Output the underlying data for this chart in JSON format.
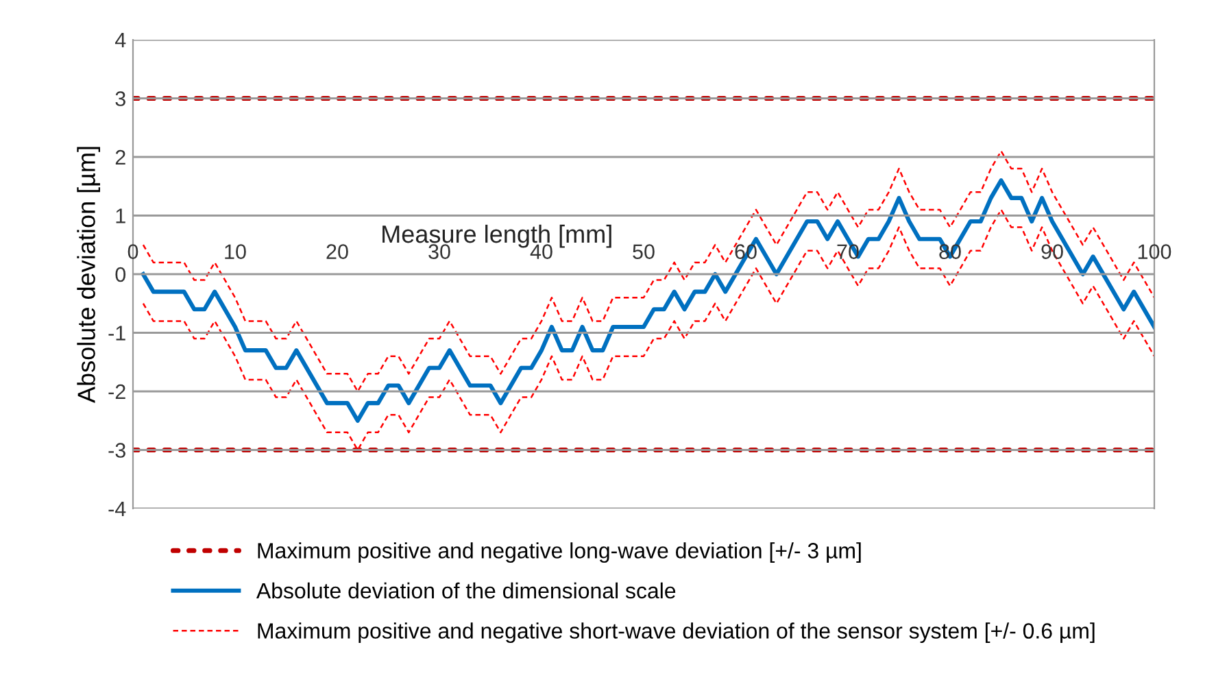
{
  "chart_data": {
    "type": "line",
    "xlabel": "Measure length [mm]",
    "ylabel": "Absolute deviation [µm]",
    "xlim": [
      0,
      100
    ],
    "xticks": [
      0,
      10,
      20,
      30,
      40,
      50,
      60,
      70,
      80,
      90,
      100
    ],
    "ylim": [
      -4,
      4
    ],
    "yticks": [
      -4,
      -3,
      -2,
      -1,
      0,
      1,
      2,
      3,
      4
    ],
    "grid": "y",
    "legend": "bottom",
    "series": [
      {
        "name": "Maximum positive and negative long-wave deviation [+/- 3 µm]",
        "color": "#c00000",
        "line_style": "dotted",
        "x": [
          0,
          100
        ],
        "values": [
          3,
          3
        ]
      },
      {
        "color": "#c00000",
        "line_style": "dotted",
        "x": [
          0,
          100
        ],
        "values": [
          -3,
          -3
        ]
      },
      {
        "name": "Absolute deviation of the dimensional scale",
        "color": "#0070c0",
        "line_style": "solid",
        "x": [
          1,
          2,
          5,
          6,
          7,
          8,
          10,
          11,
          13,
          14,
          15,
          16,
          19,
          21,
          22,
          23,
          24,
          25,
          26,
          27,
          29,
          30,
          31,
          33,
          35,
          36,
          38,
          39,
          40,
          41,
          42,
          43,
          44,
          45,
          46,
          47,
          50,
          51,
          52,
          53,
          54,
          55,
          56,
          57,
          58,
          61,
          63,
          66,
          67,
          68,
          69,
          71,
          72,
          73,
          74,
          75,
          76,
          77,
          79,
          80,
          82,
          83,
          84,
          85,
          86,
          87,
          88,
          89,
          90,
          93,
          94,
          97,
          98,
          100
        ],
        "values": [
          0,
          -0.3,
          -0.3,
          -0.6,
          -0.6,
          -0.3,
          -0.9,
          -1.3,
          -1.3,
          -1.6,
          -1.6,
          -1.3,
          -2.2,
          -2.2,
          -2.5,
          -2.2,
          -2.2,
          -1.9,
          -1.9,
          -2.2,
          -1.6,
          -1.6,
          -1.3,
          -1.9,
          -1.9,
          -2.2,
          -1.6,
          -1.6,
          -1.3,
          -0.9,
          -1.3,
          -1.3,
          -0.9,
          -1.3,
          -1.3,
          -0.9,
          -0.9,
          -0.6,
          -0.6,
          -0.3,
          -0.6,
          -0.3,
          -0.3,
          0,
          -0.3,
          0.6,
          0,
          0.9,
          0.9,
          0.6,
          0.9,
          0.3,
          0.6,
          0.6,
          0.9,
          1.3,
          0.9,
          0.6,
          0.6,
          0.3,
          0.9,
          0.9,
          1.3,
          1.6,
          1.3,
          1.3,
          0.9,
          1.3,
          0.9,
          0,
          0.3,
          -0.6,
          -0.3,
          -0.9
        ]
      },
      {
        "name": "Maximum positive and negative short-wave deviation of the sensor system [+/- 0.6 µm]",
        "color": "#ff0000",
        "line_style": "dashed",
        "x": [
          1,
          2,
          5,
          6,
          7,
          8,
          10,
          11,
          13,
          14,
          15,
          16,
          19,
          21,
          22,
          23,
          24,
          25,
          26,
          27,
          29,
          30,
          31,
          33,
          35,
          36,
          38,
          39,
          40,
          41,
          42,
          43,
          44,
          45,
          46,
          47,
          50,
          51,
          52,
          53,
          54,
          55,
          56,
          57,
          58,
          61,
          63,
          66,
          67,
          68,
          69,
          71,
          72,
          73,
          74,
          75,
          76,
          77,
          79,
          80,
          82,
          83,
          84,
          85,
          86,
          87,
          88,
          89,
          90,
          93,
          94,
          97,
          98,
          100
        ],
        "values": [
          0.5,
          0.2,
          0.2,
          -0.1,
          -0.1,
          0.2,
          -0.4,
          -0.8,
          -0.8,
          -1.1,
          -1.1,
          -0.8,
          -1.7,
          -1.7,
          -2.0,
          -1.7,
          -1.7,
          -1.4,
          -1.4,
          -1.7,
          -1.1,
          -1.1,
          -0.8,
          -1.4,
          -1.4,
          -1.7,
          -1.1,
          -1.1,
          -0.8,
          -0.4,
          -0.8,
          -0.8,
          -0.4,
          -0.8,
          -0.8,
          -0.4,
          -0.4,
          -0.1,
          -0.1,
          0.2,
          -0.1,
          0.2,
          0.2,
          0.5,
          0.2,
          1.1,
          0.5,
          1.4,
          1.4,
          1.1,
          1.4,
          0.8,
          1.1,
          1.1,
          1.4,
          1.8,
          1.4,
          1.1,
          1.1,
          0.8,
          1.4,
          1.4,
          1.8,
          2.1,
          1.8,
          1.8,
          1.4,
          1.8,
          1.4,
          0.5,
          0.8,
          -0.1,
          0.2,
          -0.4
        ]
      },
      {
        "color": "#ff0000",
        "line_style": "dashed",
        "x": [
          1,
          2,
          5,
          6,
          7,
          8,
          10,
          11,
          13,
          14,
          15,
          16,
          19,
          21,
          22,
          23,
          24,
          25,
          26,
          27,
          29,
          30,
          31,
          33,
          35,
          36,
          38,
          39,
          40,
          41,
          42,
          43,
          44,
          45,
          46,
          47,
          50,
          51,
          52,
          53,
          54,
          55,
          56,
          57,
          58,
          61,
          63,
          66,
          67,
          68,
          69,
          71,
          72,
          73,
          74,
          75,
          76,
          77,
          79,
          80,
          82,
          83,
          84,
          85,
          86,
          87,
          88,
          89,
          90,
          93,
          94,
          97,
          98,
          100
        ],
        "values": [
          -0.5,
          -0.8,
          -0.8,
          -1.1,
          -1.1,
          -0.8,
          -1.4,
          -1.8,
          -1.8,
          -2.1,
          -2.1,
          -1.8,
          -2.7,
          -2.7,
          -3.0,
          -2.7,
          -2.7,
          -2.4,
          -2.4,
          -2.7,
          -2.1,
          -2.1,
          -1.8,
          -2.4,
          -2.4,
          -2.7,
          -2.1,
          -2.1,
          -1.8,
          -1.4,
          -1.8,
          -1.8,
          -1.4,
          -1.8,
          -1.8,
          -1.4,
          -1.4,
          -1.1,
          -1.1,
          -0.8,
          -1.1,
          -0.8,
          -0.8,
          -0.5,
          -0.8,
          0.1,
          -0.5,
          0.4,
          0.4,
          0.1,
          0.4,
          -0.2,
          0.1,
          0.1,
          0.4,
          0.8,
          0.4,
          0.1,
          0.1,
          -0.2,
          0.4,
          0.4,
          0.8,
          1.1,
          0.8,
          0.8,
          0.4,
          0.8,
          0.4,
          -0.5,
          -0.2,
          -1.1,
          -0.8,
          -1.4
        ]
      }
    ]
  }
}
